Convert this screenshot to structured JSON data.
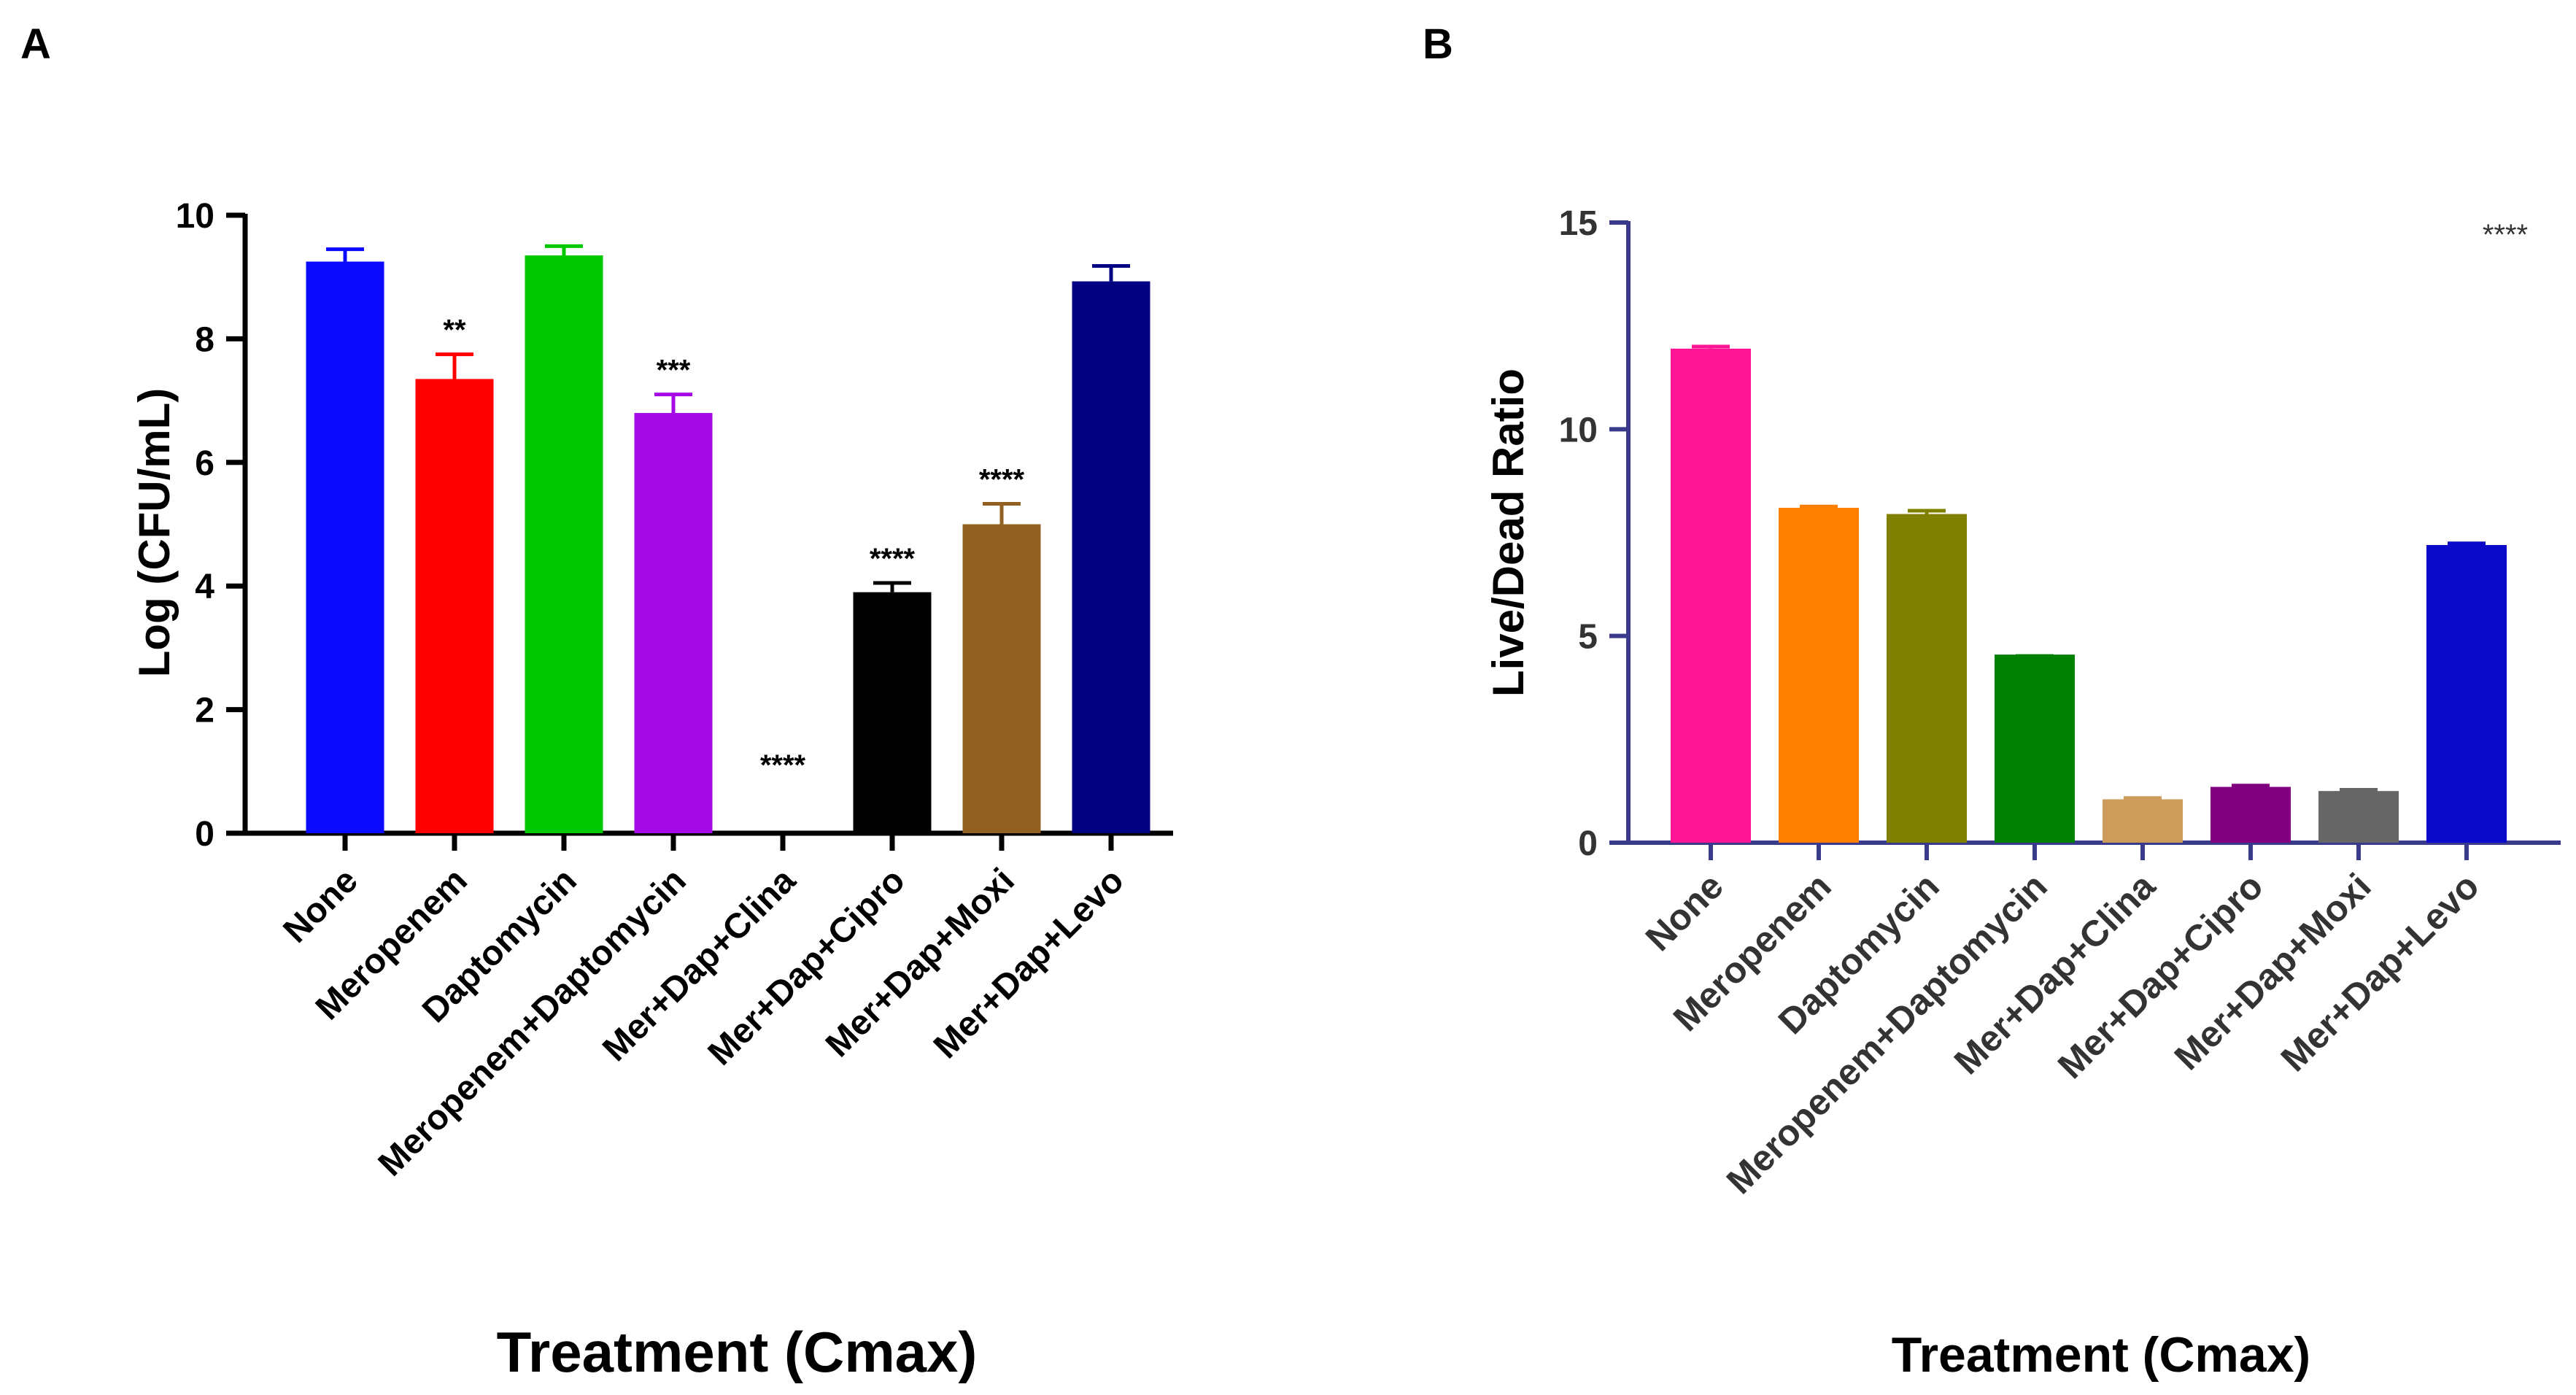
{
  "chart_data": [
    {
      "panel_label": "A",
      "type": "bar",
      "title": "",
      "xlabel": "Treatment (Cmax)",
      "ylabel": "Log (CFU/mL)",
      "ylim": [
        0,
        10
      ],
      "yticks": [
        "0",
        "2",
        "4",
        "6",
        "8",
        "10"
      ],
      "categories": [
        "None",
        "Meropenem",
        "Daptomycin",
        "Meropenem+Daptomycin",
        "Mer+Dap+Clina",
        "Mer+Dap+Cipro",
        "Mer+Dap+Moxi",
        "Mer+Dap+Levo"
      ],
      "values": [
        9.25,
        7.35,
        9.35,
        6.8,
        0,
        3.9,
        5.0,
        8.93
      ],
      "errors": [
        0.2,
        0.4,
        0.15,
        0.3,
        0,
        0.15,
        0.33,
        0.25
      ],
      "colors": [
        "#0a0aff",
        "#ff0000",
        "#00c800",
        "#a50ae6",
        "#000000",
        "#000000",
        "#926022",
        "#000080"
      ],
      "annotations": [
        "",
        "**",
        "",
        "***",
        "****",
        "****",
        "****",
        ""
      ],
      "grid": false
    },
    {
      "panel_label": "B",
      "type": "bar",
      "title": "",
      "xlabel": "Treatment (Cmax)",
      "ylabel": "Live/Dead Ratio",
      "ylim": [
        0,
        15
      ],
      "yticks": [
        "0",
        "5",
        "10",
        "15"
      ],
      "categories": [
        "None",
        "Meropenem",
        "Daptomycin",
        "Meropenem+Daptomycin",
        "Mer+Dap+Clina",
        "Mer+Dap+Cipro",
        "Mer+Dap+Moxi",
        "Mer+Dap+Levo"
      ],
      "values": [
        11.95,
        8.1,
        7.95,
        4.55,
        1.05,
        1.35,
        1.25,
        7.2
      ],
      "errors": [
        0.05,
        0.03,
        0.08,
        0,
        0.03,
        0.03,
        0.03,
        0.04
      ],
      "colors": [
        "#ff1493",
        "#ff8000",
        "#808000",
        "#008000",
        "#cd9b5a",
        "#800080",
        "#666666",
        "#0a0ac8"
      ],
      "annotations": [
        "",
        "",
        "",
        "",
        "",
        "",
        "",
        ""
      ],
      "corner_annotation": "****",
      "grid": false
    }
  ]
}
